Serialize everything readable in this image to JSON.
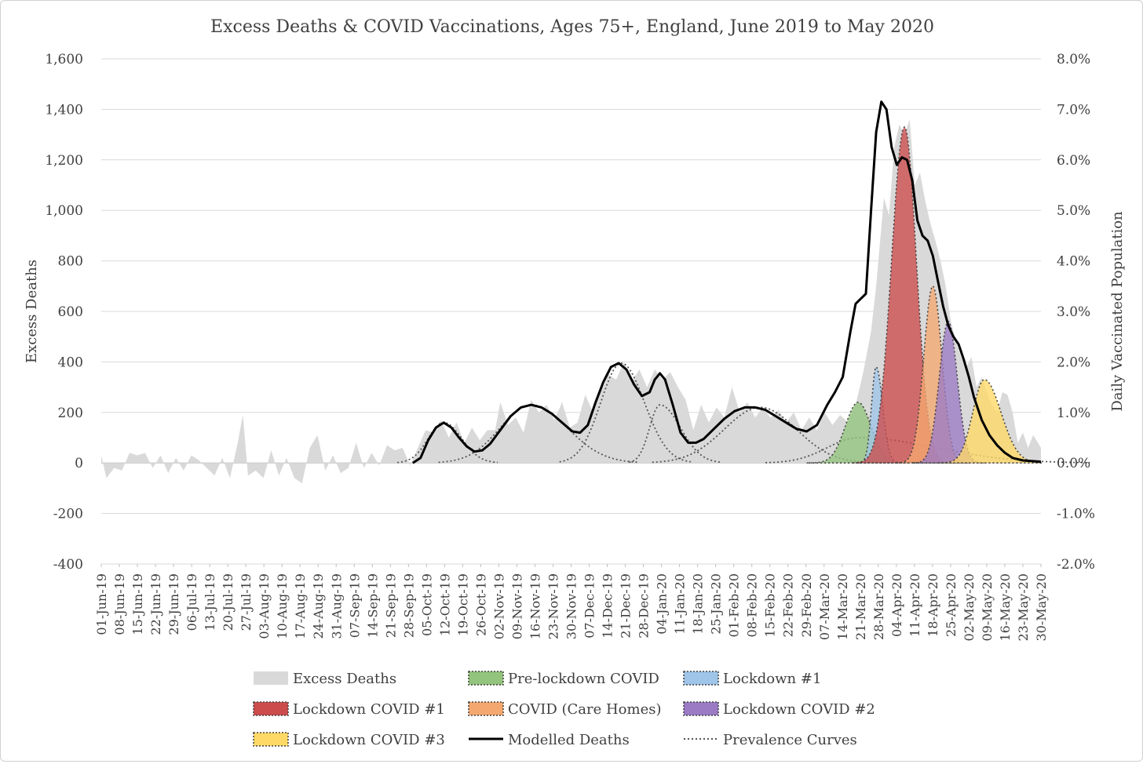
{
  "chart_data": {
    "type": "area",
    "title": "Excess Deaths & COVID Vaccinations, Ages 75+, England, June 2019 to May 2020",
    "ylabel": "Excess Deaths",
    "y2label": "Daily Vaccinated Population",
    "ylim": [
      -400,
      1600
    ],
    "y2lim": [
      -0.02,
      0.08
    ],
    "yticks": [
      "-400",
      "-200",
      "0",
      "200",
      "400",
      "600",
      "800",
      "1,000",
      "1,200",
      "1,400",
      "1,600"
    ],
    "y2ticks": [
      "-2.0%",
      "-1.0%",
      "0.0%",
      "1.0%",
      "2.0%",
      "3.0%",
      "4.0%",
      "5.0%",
      "6.0%",
      "7.0%",
      "8.0%"
    ],
    "x_start": "2019-06-01",
    "x_end": "2020-05-31",
    "xticks": [
      "01-Jun-19",
      "08-Jun-19",
      "15-Jun-19",
      "22-Jun-19",
      "29-Jun-19",
      "06-Jul-19",
      "13-Jul-19",
      "20-Jul-19",
      "27-Jul-19",
      "03-Aug-19",
      "10-Aug-19",
      "17-Aug-19",
      "24-Aug-19",
      "31-Aug-19",
      "07-Sep-19",
      "14-Sep-19",
      "21-Sep-19",
      "28-Sep-19",
      "05-Oct-19",
      "12-Oct-19",
      "19-Oct-19",
      "26-Oct-19",
      "02-Nov-19",
      "09-Nov-19",
      "16-Nov-19",
      "23-Nov-19",
      "30-Nov-19",
      "07-Dec-19",
      "14-Dec-19",
      "21-Dec-19",
      "28-Dec-19",
      "04-Jan-20",
      "11-Jan-20",
      "18-Jan-20",
      "25-Jan-20",
      "01-Feb-20",
      "08-Feb-20",
      "15-Feb-20",
      "22-Feb-20",
      "29-Feb-20",
      "07-Mar-20",
      "14-Mar-20",
      "21-Mar-20",
      "28-Mar-20",
      "04-Apr-20",
      "11-Apr-20",
      "18-Apr-20",
      "25-Apr-20",
      "02-May-20",
      "09-May-20",
      "16-May-20",
      "23-May-20",
      "30-May-20"
    ],
    "grid": true,
    "legend_position": "bottom",
    "series": [
      {
        "name": "Excess Deaths",
        "kind": "area",
        "color": "#d9d9d9",
        "points": [
          [
            "2019-06-01",
            30
          ],
          [
            "2019-06-03",
            -60
          ],
          [
            "2019-06-06",
            -20
          ],
          [
            "2019-06-09",
            -30
          ],
          [
            "2019-06-12",
            40
          ],
          [
            "2019-06-15",
            30
          ],
          [
            "2019-06-18",
            40
          ],
          [
            "2019-06-21",
            -20
          ],
          [
            "2019-06-24",
            30
          ],
          [
            "2019-06-27",
            -40
          ],
          [
            "2019-06-30",
            20
          ],
          [
            "2019-07-03",
            -30
          ],
          [
            "2019-07-06",
            30
          ],
          [
            "2019-07-09",
            10
          ],
          [
            "2019-07-12",
            -20
          ],
          [
            "2019-07-15",
            -50
          ],
          [
            "2019-07-18",
            20
          ],
          [
            "2019-07-21",
            -60
          ],
          [
            "2019-07-24",
            80
          ],
          [
            "2019-07-26",
            190
          ],
          [
            "2019-07-28",
            -50
          ],
          [
            "2019-07-31",
            -30
          ],
          [
            "2019-08-03",
            -60
          ],
          [
            "2019-08-06",
            50
          ],
          [
            "2019-08-09",
            -50
          ],
          [
            "2019-08-12",
            20
          ],
          [
            "2019-08-15",
            -60
          ],
          [
            "2019-08-18",
            -80
          ],
          [
            "2019-08-21",
            60
          ],
          [
            "2019-08-24",
            110
          ],
          [
            "2019-08-27",
            -30
          ],
          [
            "2019-08-30",
            30
          ],
          [
            "2019-09-02",
            -40
          ],
          [
            "2019-09-05",
            -20
          ],
          [
            "2019-09-08",
            80
          ],
          [
            "2019-09-11",
            -20
          ],
          [
            "2019-09-14",
            40
          ],
          [
            "2019-09-17",
            -10
          ],
          [
            "2019-09-20",
            70
          ],
          [
            "2019-09-23",
            50
          ],
          [
            "2019-09-26",
            60
          ],
          [
            "2019-09-29",
            -10
          ],
          [
            "2019-10-02",
            60
          ],
          [
            "2019-10-05",
            130
          ],
          [
            "2019-10-08",
            120
          ],
          [
            "2019-10-11",
            170
          ],
          [
            "2019-10-14",
            100
          ],
          [
            "2019-10-17",
            160
          ],
          [
            "2019-10-20",
            80
          ],
          [
            "2019-10-23",
            140
          ],
          [
            "2019-10-26",
            90
          ],
          [
            "2019-10-29",
            130
          ],
          [
            "2019-11-01",
            130
          ],
          [
            "2019-11-03",
            240
          ],
          [
            "2019-11-06",
            150
          ],
          [
            "2019-11-09",
            180
          ],
          [
            "2019-11-12",
            120
          ],
          [
            "2019-11-15",
            250
          ],
          [
            "2019-11-18",
            200
          ],
          [
            "2019-11-21",
            230
          ],
          [
            "2019-11-24",
            170
          ],
          [
            "2019-11-27",
            240
          ],
          [
            "2019-11-30",
            140
          ],
          [
            "2019-12-03",
            160
          ],
          [
            "2019-12-06",
            270
          ],
          [
            "2019-12-09",
            200
          ],
          [
            "2019-12-12",
            280
          ],
          [
            "2019-12-15",
            350
          ],
          [
            "2019-12-18",
            330
          ],
          [
            "2019-12-21",
            400
          ],
          [
            "2019-12-24",
            320
          ],
          [
            "2019-12-27",
            370
          ],
          [
            "2019-12-30",
            300
          ],
          [
            "2020-01-02",
            370
          ],
          [
            "2020-01-05",
            330
          ],
          [
            "2020-01-08",
            360
          ],
          [
            "2020-01-11",
            300
          ],
          [
            "2020-01-14",
            250
          ],
          [
            "2020-01-17",
            130
          ],
          [
            "2020-01-20",
            230
          ],
          [
            "2020-01-23",
            160
          ],
          [
            "2020-01-26",
            220
          ],
          [
            "2020-01-29",
            180
          ],
          [
            "2020-02-01",
            300
          ],
          [
            "2020-02-04",
            200
          ],
          [
            "2020-02-07",
            240
          ],
          [
            "2020-02-10",
            180
          ],
          [
            "2020-02-13",
            220
          ],
          [
            "2020-02-16",
            180
          ],
          [
            "2020-02-19",
            210
          ],
          [
            "2020-02-22",
            160
          ],
          [
            "2020-02-25",
            200
          ],
          [
            "2020-02-28",
            130
          ],
          [
            "2020-03-02",
            180
          ],
          [
            "2020-03-05",
            130
          ],
          [
            "2020-03-08",
            200
          ],
          [
            "2020-03-11",
            150
          ],
          [
            "2020-03-14",
            190
          ],
          [
            "2020-03-17",
            160
          ],
          [
            "2020-03-20",
            230
          ],
          [
            "2020-03-23",
            360
          ],
          [
            "2020-03-26",
            520
          ],
          [
            "2020-03-28",
            700
          ],
          [
            "2020-03-31",
            1050
          ],
          [
            "2020-04-02",
            980
          ],
          [
            "2020-04-04",
            1250
          ],
          [
            "2020-04-06",
            1340
          ],
          [
            "2020-04-08",
            1300
          ],
          [
            "2020-04-10",
            1360
          ],
          [
            "2020-04-12",
            1100
          ],
          [
            "2020-04-14",
            1150
          ],
          [
            "2020-04-16",
            1040
          ],
          [
            "2020-04-18",
            950
          ],
          [
            "2020-04-20",
            880
          ],
          [
            "2020-04-22",
            800
          ],
          [
            "2020-04-24",
            700
          ],
          [
            "2020-04-26",
            560
          ],
          [
            "2020-04-28",
            480
          ],
          [
            "2020-04-30",
            420
          ],
          [
            "2020-05-02",
            380
          ],
          [
            "2020-05-04",
            420
          ],
          [
            "2020-05-06",
            300
          ],
          [
            "2020-05-08",
            340
          ],
          [
            "2020-05-10",
            280
          ],
          [
            "2020-05-12",
            230
          ],
          [
            "2020-05-14",
            200
          ],
          [
            "2020-05-16",
            280
          ],
          [
            "2020-05-18",
            270
          ],
          [
            "2020-05-20",
            200
          ],
          [
            "2020-05-22",
            80
          ],
          [
            "2020-05-24",
            120
          ],
          [
            "2020-05-26",
            60
          ],
          [
            "2020-05-28",
            110
          ],
          [
            "2020-05-31",
            60
          ]
        ]
      },
      {
        "name": "Pre-lockdown COVID",
        "kind": "curve",
        "color": "#93c47d",
        "peak": 240,
        "center": "2020-03-21",
        "left_sd": 5,
        "right_sd": 5
      },
      {
        "name": "Lockdown #1",
        "kind": "curve",
        "color": "#9fc5e8",
        "peak": 380,
        "center": "2020-03-28",
        "left_sd": 1.8,
        "right_sd": 2.5
      },
      {
        "name": "Lockdown COVID #1",
        "kind": "curve",
        "color": "#cc4c4c",
        "peak": 1330,
        "center": "2020-04-08",
        "left_sd": 5,
        "right_sd": 4.6
      },
      {
        "name": "COVID (Care Homes)",
        "kind": "curve",
        "color": "#f4a870",
        "peak": 700,
        "center": "2020-04-19",
        "left_sd": 3.5,
        "right_sd": 3.5
      },
      {
        "name": "Lockdown COVID #2",
        "kind": "curve",
        "color": "#9b7bc4",
        "peak": 560,
        "center": "2020-04-25",
        "left_sd": 3.5,
        "right_sd": 3.5
      },
      {
        "name": "Lockdown COVID #3",
        "kind": "curve",
        "color": "#ffd966",
        "peak": 330,
        "center": "2020-05-09",
        "left_sd": 4.5,
        "right_sd": 6.5
      },
      {
        "name": "Modelled Deaths",
        "kind": "line",
        "color": "#000000",
        "points": [
          [
            "2019-09-30",
            0
          ],
          [
            "2019-10-03",
            20
          ],
          [
            "2019-10-06",
            90
          ],
          [
            "2019-10-09",
            140
          ],
          [
            "2019-10-12",
            160
          ],
          [
            "2019-10-15",
            140
          ],
          [
            "2019-10-18",
            100
          ],
          [
            "2019-10-21",
            65
          ],
          [
            "2019-10-24",
            45
          ],
          [
            "2019-10-27",
            50
          ],
          [
            "2019-10-30",
            75
          ],
          [
            "2019-11-03",
            130
          ],
          [
            "2019-11-07",
            185
          ],
          [
            "2019-11-11",
            220
          ],
          [
            "2019-11-15",
            230
          ],
          [
            "2019-11-19",
            220
          ],
          [
            "2019-11-23",
            195
          ],
          [
            "2019-11-27",
            160
          ],
          [
            "2019-12-01",
            125
          ],
          [
            "2019-12-04",
            120
          ],
          [
            "2019-12-07",
            150
          ],
          [
            "2019-12-10",
            240
          ],
          [
            "2019-12-13",
            320
          ],
          [
            "2019-12-16",
            380
          ],
          [
            "2019-12-19",
            395
          ],
          [
            "2019-12-22",
            370
          ],
          [
            "2019-12-25",
            310
          ],
          [
            "2019-12-28",
            265
          ],
          [
            "2019-12-31",
            280
          ],
          [
            "2020-01-02",
            330
          ],
          [
            "2020-01-04",
            355
          ],
          [
            "2020-01-06",
            330
          ],
          [
            "2020-01-09",
            230
          ],
          [
            "2020-01-12",
            120
          ],
          [
            "2020-01-15",
            80
          ],
          [
            "2020-01-18",
            80
          ],
          [
            "2020-01-21",
            95
          ],
          [
            "2020-01-25",
            135
          ],
          [
            "2020-01-29",
            175
          ],
          [
            "2020-02-02",
            205
          ],
          [
            "2020-02-06",
            220
          ],
          [
            "2020-02-10",
            220
          ],
          [
            "2020-02-14",
            210
          ],
          [
            "2020-02-18",
            185
          ],
          [
            "2020-02-22",
            160
          ],
          [
            "2020-02-26",
            135
          ],
          [
            "2020-03-01",
            125
          ],
          [
            "2020-03-05",
            150
          ],
          [
            "2020-03-09",
            230
          ],
          [
            "2020-03-12",
            280
          ],
          [
            "2020-03-15",
            340
          ],
          [
            "2020-03-18",
            520
          ],
          [
            "2020-03-20",
            630
          ],
          [
            "2020-03-22",
            650
          ],
          [
            "2020-03-24",
            670
          ],
          [
            "2020-03-26",
            1000
          ],
          [
            "2020-03-28",
            1310
          ],
          [
            "2020-03-30",
            1430
          ],
          [
            "2020-04-01",
            1400
          ],
          [
            "2020-04-03",
            1250
          ],
          [
            "2020-04-05",
            1180
          ],
          [
            "2020-04-07",
            1210
          ],
          [
            "2020-04-09",
            1200
          ],
          [
            "2020-04-11",
            1120
          ],
          [
            "2020-04-13",
            960
          ],
          [
            "2020-04-15",
            900
          ],
          [
            "2020-04-17",
            880
          ],
          [
            "2020-04-19",
            820
          ],
          [
            "2020-04-21",
            720
          ],
          [
            "2020-04-23",
            620
          ],
          [
            "2020-04-25",
            545
          ],
          [
            "2020-04-27",
            500
          ],
          [
            "2020-04-29",
            470
          ],
          [
            "2020-05-01",
            410
          ],
          [
            "2020-05-03",
            340
          ],
          [
            "2020-05-05",
            260
          ],
          [
            "2020-05-08",
            170
          ],
          [
            "2020-05-11",
            110
          ],
          [
            "2020-05-14",
            70
          ],
          [
            "2020-05-17",
            40
          ],
          [
            "2020-05-20",
            20
          ],
          [
            "2020-05-24",
            10
          ],
          [
            "2020-05-31",
            5
          ]
        ]
      },
      {
        "name": "Prevalence Curves",
        "kind": "dotted",
        "color": "#555555"
      }
    ]
  },
  "legend": [
    {
      "label": "Excess Deaths",
      "swatch": "area",
      "color": "#d9d9d9",
      "border": "none"
    },
    {
      "label": "Pre-lockdown COVID",
      "swatch": "area",
      "color": "#93c47d",
      "border": "dotted"
    },
    {
      "label": "Lockdown #1",
      "swatch": "area",
      "color": "#9fc5e8",
      "border": "dotted"
    },
    {
      "label": "Lockdown COVID #1",
      "swatch": "area",
      "color": "#cc4c4c",
      "border": "dotted"
    },
    {
      "label": "COVID (Care Homes)",
      "swatch": "area",
      "color": "#f4a870",
      "border": "dotted"
    },
    {
      "label": "Lockdown COVID #2",
      "swatch": "area",
      "color": "#9b7bc4",
      "border": "dotted"
    },
    {
      "label": "Lockdown COVID #3",
      "swatch": "area",
      "color": "#ffd966",
      "border": "dotted"
    },
    {
      "label": "Modelled Deaths",
      "swatch": "line",
      "color": "#000000",
      "border": "solid"
    },
    {
      "label": "Prevalence Curves",
      "swatch": "dotted",
      "color": "#555555",
      "border": "dotted"
    }
  ]
}
